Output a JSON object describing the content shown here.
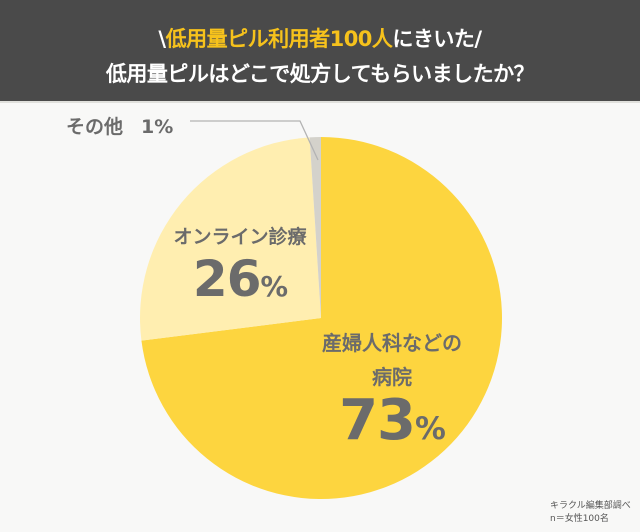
{
  "header": {
    "title_prefix": "\\",
    "title_highlight": "低用量ピル利用者100人",
    "title_suffix": "にきいた/",
    "subtitle": "低用量ピルはどこで処方してもらいましたか？"
  },
  "labels": {
    "other_name": "その他",
    "other_pct": "1%",
    "online_name": "オンライン診療",
    "online_value": "26",
    "hospital_name_line1": "産婦人科などの",
    "hospital_name_line2": "病院",
    "hospital_value": "73",
    "percent_sign": "%"
  },
  "credit": {
    "line1": "キラクル編集部調べ",
    "line2": "n＝女性100名"
  },
  "colors": {
    "header_bg": "#4a4a4a",
    "highlight": "#f6c21c",
    "hospital": "#fdd53f",
    "online": "#ffeeb0",
    "other": "#d4d2cb"
  },
  "chart_data": {
    "type": "pie",
    "title": "低用量ピルはどこで処方してもらいましたか？",
    "subtitle": "低用量ピル利用者100人にきいた",
    "categories": [
      "産婦人科などの病院",
      "オンライン診療",
      "その他"
    ],
    "values": [
      73,
      26,
      1
    ],
    "unit": "%",
    "colors": [
      "#fdd53f",
      "#ffeeb0",
      "#d4d2cb"
    ],
    "start_angle": "12 o'clock, clockwise",
    "note": "キラクル編集部調べ n＝女性100名"
  }
}
